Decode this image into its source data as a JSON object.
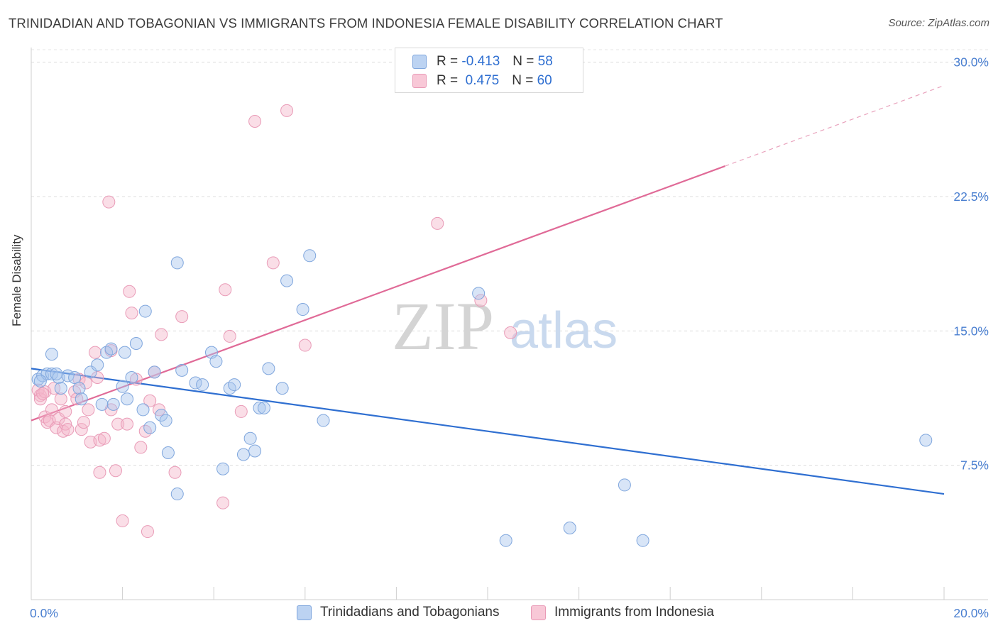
{
  "title": "TRINIDADIAN AND TOBAGONIAN VS IMMIGRANTS FROM INDONESIA FEMALE DISABILITY CORRELATION CHART",
  "source": "Source: ZipAtlas.com",
  "watermark": {
    "zip": "ZIP",
    "atlas": "atlas"
  },
  "colors": {
    "blue": "#4a7fd0",
    "blue_fill": "#a9c6ee",
    "pink": "#e06a97",
    "pink_fill": "#f4b6c9",
    "tick": "#4a7fd0"
  },
  "legend": {
    "rows": [
      {
        "r_label": "R =",
        "r_value": "-0.413",
        "n_label": "N =",
        "n_value": "58"
      },
      {
        "r_label": "R =",
        "r_value": "0.475",
        "n_label": "N =",
        "n_value": "60"
      }
    ]
  },
  "bottom_legend": [
    "Trinidadians and Tobagonians",
    "Immigrants from Indonesia"
  ],
  "chart_data": {
    "type": "scatter",
    "title": "TRINIDADIAN AND TOBAGONIAN VS IMMIGRANTS FROM INDONESIA FEMALE DISABILITY CORRELATION CHART",
    "xlabel": "",
    "ylabel": "Female Disability",
    "xlim": [
      0,
      20
    ],
    "ylim": [
      0,
      30.7
    ],
    "x_ticks": [
      0,
      20
    ],
    "x_tick_labels": [
      "0.0%",
      "20.0%"
    ],
    "y_ticks": [
      7.5,
      15.0,
      22.5,
      30.0
    ],
    "y_tick_labels": [
      "7.5%",
      "15.0%",
      "22.5%",
      "30.0%"
    ],
    "grid": true,
    "legend_position": "top-center",
    "series": [
      {
        "name": "Trinidadians and Tobagonians",
        "color": "#4a7fd0",
        "trend": {
          "x": [
            0,
            20
          ],
          "y": [
            12.9,
            5.9
          ]
        },
        "points": [
          [
            0.15,
            12.3
          ],
          [
            0.25,
            12.5
          ],
          [
            0.35,
            12.6
          ],
          [
            0.45,
            12.6
          ],
          [
            0.45,
            13.7
          ],
          [
            0.6,
            12.4
          ],
          [
            0.65,
            11.8
          ],
          [
            0.8,
            12.5
          ],
          [
            0.95,
            12.4
          ],
          [
            1.05,
            11.8
          ],
          [
            1.1,
            11.2
          ],
          [
            1.3,
            12.7
          ],
          [
            1.45,
            13.1
          ],
          [
            1.55,
            10.9
          ],
          [
            1.65,
            13.8
          ],
          [
            1.75,
            14.0
          ],
          [
            1.8,
            10.9
          ],
          [
            2.0,
            11.9
          ],
          [
            2.05,
            13.8
          ],
          [
            2.1,
            11.2
          ],
          [
            2.2,
            12.4
          ],
          [
            2.3,
            14.3
          ],
          [
            2.45,
            10.6
          ],
          [
            2.5,
            16.1
          ],
          [
            2.6,
            9.6
          ],
          [
            2.7,
            12.7
          ],
          [
            2.85,
            10.3
          ],
          [
            2.95,
            10.0
          ],
          [
            3.0,
            8.2
          ],
          [
            3.2,
            5.9
          ],
          [
            3.2,
            18.8
          ],
          [
            3.3,
            12.8
          ],
          [
            3.6,
            12.1
          ],
          [
            3.75,
            12.0
          ],
          [
            3.95,
            13.8
          ],
          [
            4.05,
            13.3
          ],
          [
            4.2,
            7.3
          ],
          [
            4.35,
            11.8
          ],
          [
            4.45,
            12.0
          ],
          [
            4.65,
            8.1
          ],
          [
            4.8,
            9.0
          ],
          [
            4.9,
            8.3
          ],
          [
            5.0,
            10.7
          ],
          [
            5.1,
            10.7
          ],
          [
            5.2,
            12.9
          ],
          [
            5.5,
            11.8
          ],
          [
            5.6,
            17.8
          ],
          [
            5.95,
            16.2
          ],
          [
            6.1,
            19.2
          ],
          [
            6.4,
            10.0
          ],
          [
            9.8,
            17.1
          ],
          [
            10.4,
            3.3
          ],
          [
            11.8,
            4.0
          ],
          [
            13.0,
            6.4
          ],
          [
            13.4,
            3.3
          ],
          [
            19.6,
            8.9
          ],
          [
            0.2,
            12.2
          ],
          [
            0.55,
            12.6
          ]
        ]
      },
      {
        "name": "Immigrants from Indonesia",
        "color": "#e06a97",
        "trend": {
          "x": [
            0,
            15.2
          ],
          "y": [
            10.0,
            24.2
          ]
        },
        "trend_extension": {
          "x": [
            15.2,
            20
          ],
          "y": [
            24.2,
            28.7
          ]
        },
        "points": [
          [
            0.15,
            11.7
          ],
          [
            0.2,
            11.4
          ],
          [
            0.2,
            11.2
          ],
          [
            0.3,
            11.6
          ],
          [
            0.3,
            10.2
          ],
          [
            0.35,
            9.9
          ],
          [
            0.4,
            10.0
          ],
          [
            0.45,
            10.6
          ],
          [
            0.5,
            11.8
          ],
          [
            0.55,
            9.6
          ],
          [
            0.6,
            10.1
          ],
          [
            0.65,
            11.2
          ],
          [
            0.7,
            9.4
          ],
          [
            0.75,
            9.8
          ],
          [
            0.75,
            10.5
          ],
          [
            0.8,
            9.5
          ],
          [
            0.95,
            11.6
          ],
          [
            1.0,
            11.2
          ],
          [
            1.05,
            12.3
          ],
          [
            1.1,
            9.5
          ],
          [
            1.15,
            9.9
          ],
          [
            1.2,
            12.1
          ],
          [
            1.25,
            10.6
          ],
          [
            1.3,
            8.8
          ],
          [
            1.4,
            13.8
          ],
          [
            1.5,
            8.9
          ],
          [
            1.5,
            7.1
          ],
          [
            1.6,
            9.0
          ],
          [
            1.7,
            22.2
          ],
          [
            1.75,
            13.9
          ],
          [
            1.75,
            10.6
          ],
          [
            1.85,
            7.2
          ],
          [
            1.9,
            9.8
          ],
          [
            2.0,
            4.4
          ],
          [
            2.1,
            9.8
          ],
          [
            2.15,
            17.2
          ],
          [
            2.2,
            16.0
          ],
          [
            2.3,
            12.3
          ],
          [
            2.4,
            8.5
          ],
          [
            2.5,
            9.4
          ],
          [
            2.55,
            3.8
          ],
          [
            2.6,
            11.1
          ],
          [
            2.7,
            12.7
          ],
          [
            2.8,
            10.6
          ],
          [
            2.85,
            14.8
          ],
          [
            3.15,
            7.1
          ],
          [
            3.3,
            15.8
          ],
          [
            4.2,
            5.4
          ],
          [
            4.25,
            17.3
          ],
          [
            4.35,
            14.7
          ],
          [
            4.6,
            10.5
          ],
          [
            4.9,
            26.7
          ],
          [
            5.3,
            18.8
          ],
          [
            5.6,
            27.3
          ],
          [
            6.0,
            14.2
          ],
          [
            8.9,
            21.0
          ],
          [
            9.85,
            16.7
          ],
          [
            10.5,
            14.9
          ],
          [
            0.25,
            11.5
          ],
          [
            1.45,
            12.4
          ]
        ]
      }
    ]
  }
}
